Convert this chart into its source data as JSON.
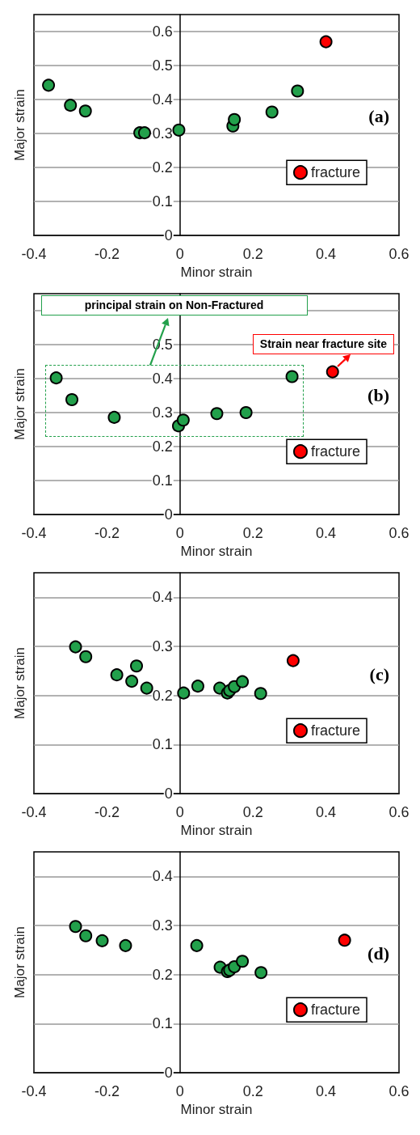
{
  "chart_data": [
    {
      "type": "scatter",
      "xlabel": "Minor strain",
      "ylabel": "Major strain",
      "xlim": [
        -0.4,
        0.6
      ],
      "xticks": [
        -0.4,
        -0.2,
        0,
        0.2,
        0.4,
        0.6
      ],
      "ylim": [
        0,
        0.65
      ],
      "yticks": [
        0,
        0.1,
        0.2,
        0.3,
        0.4,
        0.5,
        0.6
      ],
      "grid": "y",
      "legend": "bottom right",
      "marker": "circle",
      "annotations": [
        "(a)"
      ],
      "series": [
        {
          "color": "#22a04b",
          "x": [
            -0.36,
            -0.3,
            -0.259,
            -0.11,
            -0.097,
            -0.003,
            0.145,
            0.149,
            0.252,
            0.322
          ],
          "values": [
            0.442,
            0.383,
            0.366,
            0.302,
            0.302,
            0.31,
            0.322,
            0.341,
            0.363,
            0.425
          ]
        },
        {
          "name": "fracture",
          "color": "#ff0000",
          "x": [
            0.4
          ],
          "values": [
            0.57
          ]
        }
      ]
    },
    {
      "type": "scatter",
      "xlabel": "Minor strain",
      "ylabel": "Major strain",
      "xlim": [
        -0.4,
        0.6
      ],
      "xticks": [
        -0.4,
        -0.2,
        0,
        0.2,
        0.4,
        0.6
      ],
      "ylim": [
        0,
        0.65
      ],
      "yticks": [
        0,
        0.1,
        0.2,
        0.3,
        0.4,
        0.5,
        {
          "value": 0.6,
          "label": null
        }
      ],
      "grid": "y",
      "legend": "bottom right",
      "marker": "circle",
      "annotations": [
        "(b)",
        "principal strain on Non-Fractured",
        {
          "text": "Strain near fracture site",
          "x": 0.418,
          "y": 0.42
        }
      ],
      "series": [
        {
          "color": "#22a04b",
          "x": [
            -0.339,
            -0.296,
            -0.18,
            -0.004,
            0.009,
            0.101,
            0.181,
            0.307
          ],
          "values": [
            0.402,
            0.338,
            0.286,
            0.261,
            0.278,
            0.297,
            0.3,
            0.406
          ]
        },
        {
          "name": "fracture",
          "color": "#ff0000",
          "x": [
            0.418
          ],
          "values": [
            0.42
          ]
        }
      ]
    },
    {
      "type": "scatter",
      "xlabel": "Minor strain",
      "ylabel": "Major strain",
      "xlim": [
        -0.4,
        0.6
      ],
      "xticks": [
        -0.4,
        -0.2,
        0,
        0.2,
        0.4,
        0.6
      ],
      "ylim": [
        0,
        0.45
      ],
      "yticks": [
        0,
        0.1,
        0.2,
        0.3,
        0.4
      ],
      "grid": "y",
      "legend": "bottom right",
      "marker": "circle",
      "annotations": [
        "(c)"
      ],
      "series": [
        {
          "color": "#22a04b",
          "x": [
            -0.286,
            -0.258,
            -0.173,
            -0.132,
            -0.119,
            -0.091,
            0.01,
            0.049,
            0.109,
            0.13,
            0.136,
            0.149,
            0.171,
            0.221
          ],
          "values": [
            0.299,
            0.279,
            0.242,
            0.229,
            0.26,
            0.215,
            0.205,
            0.219,
            0.215,
            0.205,
            0.21,
            0.218,
            0.228,
            0.204
          ]
        },
        {
          "name": "fracture",
          "color": "#ff0000",
          "x": [
            0.31
          ],
          "values": [
            0.271
          ]
        }
      ]
    },
    {
      "type": "scatter",
      "xlabel": "Minor strain",
      "ylabel": "Major strain",
      "xlim": [
        -0.4,
        0.6
      ],
      "xticks": [
        -0.4,
        -0.2,
        0,
        0.2,
        0.4,
        0.6
      ],
      "ylim": [
        0,
        0.45
      ],
      "yticks": [
        0,
        0.1,
        0.2,
        0.3,
        0.4
      ],
      "grid": "y",
      "legend": "bottom right",
      "marker": "circle",
      "annotations": [
        "(d)"
      ],
      "series": [
        {
          "color": "#22a04b",
          "x": [
            -0.286,
            -0.258,
            -0.213,
            -0.149,
            0.046,
            0.11,
            0.13,
            0.136,
            0.149,
            0.171,
            0.222
          ],
          "values": [
            0.298,
            0.279,
            0.269,
            0.259,
            0.259,
            0.215,
            0.206,
            0.209,
            0.216,
            0.227,
            0.204
          ]
        },
        {
          "name": "fracture",
          "color": "#ff0000",
          "x": [
            0.451
          ],
          "values": [
            0.27
          ]
        }
      ]
    }
  ]
}
